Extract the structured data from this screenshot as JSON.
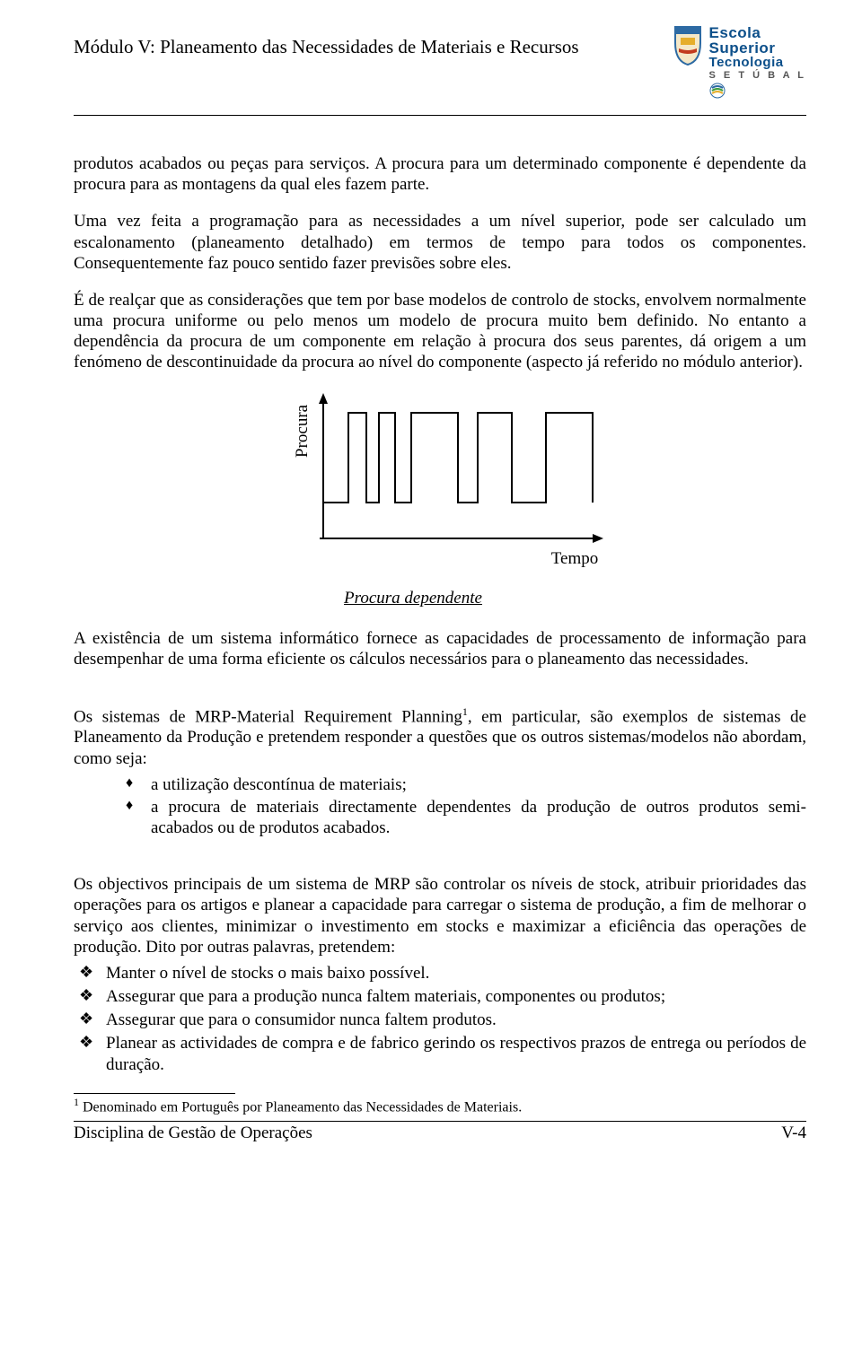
{
  "header": {
    "title": "Módulo V: Planeamento das Necessidades de Materiais e Recursos",
    "logo": {
      "line1": "Escola",
      "line2": "Superior",
      "line3": "Tecnologia",
      "line4": "S E T Ú B A L",
      "shield_colors": {
        "body": "#2d6aa3",
        "ribbon": "#c23b1f",
        "emblem": "#e6ae2c"
      },
      "secondary_emblem_colors": {
        "top": "#2d6aa3",
        "mid": "#3b9b3b",
        "bot": "#e6ae2c"
      }
    }
  },
  "paragraphs": {
    "p1": "produtos acabados ou peças para serviços. A procura para um determinado componente é dependente da procura para as montagens da qual eles fazem parte.",
    "p2": "Uma vez feita a programação para as necessidades a um nível superior, pode ser calculado  um escalonamento (planeamento detalhado) em termos de tempo para todos os componentes. Consequentemente faz pouco sentido fazer previsões sobre eles.",
    "p3": "É de realçar que as considerações que tem por base modelos de controlo de stocks, envolvem normalmente uma procura uniforme ou pelo menos um modelo de procura muito bem definido. No entanto a dependência da procura de um componente em relação à procura dos seus parentes, dá origem a um fenómeno de descontinuidade da procura ao nível do componente (aspecto já referido no módulo anterior).",
    "p4": "A existência de um sistema informático fornece as capacidades de processamento de informação para desempenhar de uma forma eficiente os cálculos necessários para o planeamento das necessidades.",
    "p5a": "Os sistemas de MRP-Material Requirement Planning",
    "p5b": ", em particular, são exemplos de sistemas de Planeamento da Produção e pretendem responder a questões que os outros sistemas/modelos não abordam, como seja:",
    "p6": "Os objectivos principais de um sistema de MRP são controlar os níveis de stock, atribuir prioridades das operações para os artigos e planear a capacidade para carregar o sistema de produção, a fim de melhorar o serviço aos clientes, minimizar o investimento em stocks e maximizar a eficiência das operações de produção. Dito por outras palavras, pretendem:"
  },
  "chart": {
    "type": "line",
    "y_label": "Procura",
    "x_label": "Tempo",
    "caption": "Procura dependente",
    "stroke_color": "#000000",
    "stroke_width": 2,
    "background_color": "#ffffff",
    "x_range": [
      0,
      300
    ],
    "y_range": [
      0,
      140
    ],
    "baseline_y": 120,
    "pulse_top_y": 30,
    "pulses": [
      {
        "x_start": 28,
        "x_end": 48
      },
      {
        "x_start": 62,
        "x_end": 80
      },
      {
        "x_start": 98,
        "x_end": 150
      },
      {
        "x_start": 172,
        "x_end": 210
      },
      {
        "x_start": 248,
        "x_end": 300
      }
    ],
    "axis": {
      "x_arrow": true,
      "y_arrow": true
    }
  },
  "diamond_list": [
    "a utilização descontínua de materiais;",
    "a procura de materiais directamente dependentes da produção de outros produtos semi-acabados ou de produtos acabados."
  ],
  "clover_list": [
    "Manter o nível de stocks o mais baixo possível.",
    "Assegurar que para a produção nunca faltem materiais, componentes ou produtos;",
    "Assegurar que para o consumidor nunca faltem produtos.",
    "Planear as actividades de compra e de fabrico gerindo os respectivos prazos de entrega ou períodos de duração."
  ],
  "footnote": {
    "marker": "1",
    "text": " Denominado em Português por Planeamento das Necessidades de Materiais."
  },
  "footer": {
    "left": "Disciplina de Gestão de Operações",
    "right": "V-4"
  },
  "colors": {
    "text": "#000000",
    "rule": "#000000",
    "background": "#ffffff"
  },
  "typography": {
    "body_font": "Times New Roman",
    "body_size_pt": 14,
    "header_size_pt": 15
  }
}
